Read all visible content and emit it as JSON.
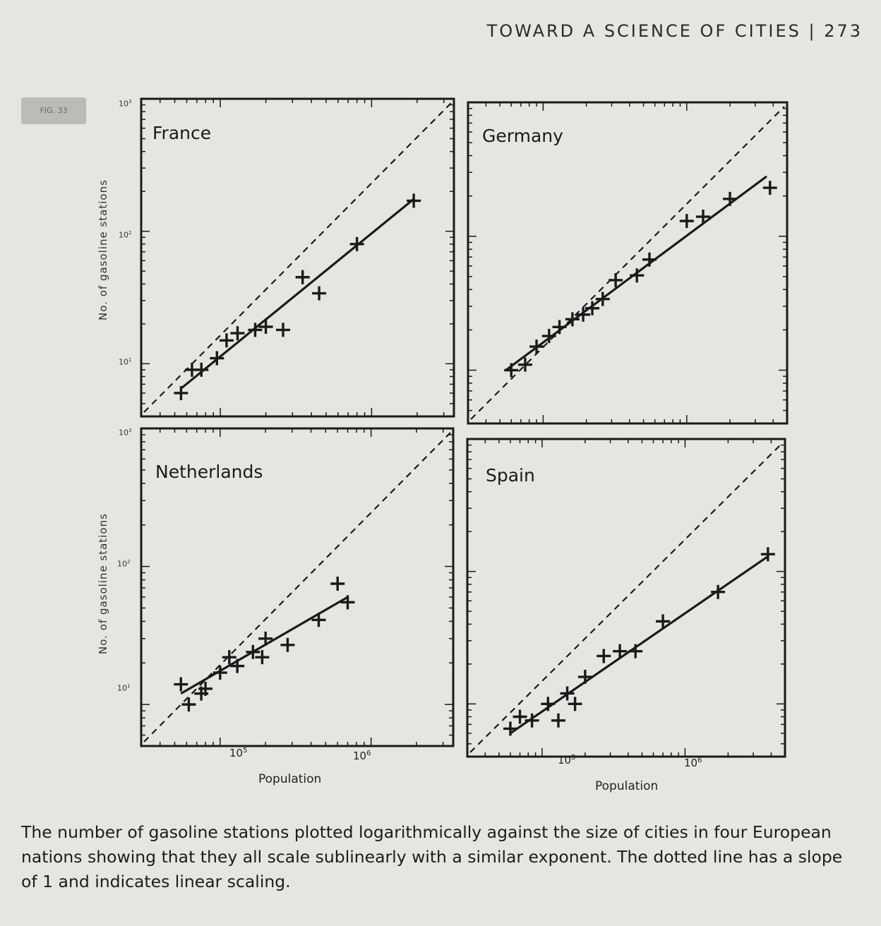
{
  "running_head": "TOWARD A SCIENCE OF CITIES | 273",
  "figure_tag": "FIG. 33",
  "axis_labels": {
    "y": "No. of gasoline stations",
    "x": "Population",
    "x_ticks": [
      "10",
      "10"
    ],
    "x_tick_exponents": [
      "5",
      "6"
    ],
    "y_ticks": [
      "10",
      "10",
      "10"
    ],
    "y_tick_exponents": [
      "3",
      "2",
      "1"
    ]
  },
  "caption": "The number of gasoline stations plotted logarithmically against the size of cities in four European nations showing that they all scale sublinearly with a similar exponent. The dotted line has a slope of 1 and indicates linear scaling.",
  "chart_data": [
    {
      "type": "scatter",
      "title": "France",
      "xlabel": "Population",
      "ylabel": "No. of gasoline stations",
      "log_x": true,
      "log_y": true,
      "xlim": [
        30000,
        3500000
      ],
      "ylim": [
        4,
        1000
      ],
      "points": [
        [
          55000,
          6
        ],
        [
          65000,
          9
        ],
        [
          75000,
          9
        ],
        [
          95000,
          11
        ],
        [
          110000,
          15
        ],
        [
          130000,
          17
        ],
        [
          170000,
          18
        ],
        [
          200000,
          19
        ],
        [
          260000,
          18
        ],
        [
          350000,
          45
        ],
        [
          450000,
          34
        ],
        [
          800000,
          80
        ],
        [
          1900000,
          170
        ]
      ],
      "fit_line": [
        [
          55000,
          6.5
        ],
        [
          1900000,
          175
        ]
      ],
      "reference_line": "slope 1 (dashed)"
    },
    {
      "type": "scatter",
      "title": "Germany",
      "xlabel": "Population",
      "ylabel": "No. of gasoline stations",
      "log_x": true,
      "log_y": true,
      "xlim": [
        30000,
        5000000
      ],
      "ylim": [
        4,
        1000
      ],
      "points": [
        [
          60000,
          10
        ],
        [
          75000,
          11
        ],
        [
          90000,
          15
        ],
        [
          110000,
          18
        ],
        [
          130000,
          21
        ],
        [
          160000,
          24
        ],
        [
          190000,
          26
        ],
        [
          220000,
          29
        ],
        [
          260000,
          34
        ],
        [
          320000,
          47
        ],
        [
          450000,
          51
        ],
        [
          550000,
          67
        ],
        [
          1000000,
          130
        ],
        [
          1300000,
          140
        ],
        [
          2000000,
          190
        ],
        [
          3800000,
          230
        ]
      ],
      "fit_line": [
        [
          55000,
          10
        ],
        [
          3600000,
          280
        ]
      ],
      "reference_line": "slope 1 (dashed)"
    },
    {
      "type": "scatter",
      "title": "Netherlands",
      "xlabel": "Population",
      "ylabel": "No. of gasoline stations",
      "log_x": true,
      "log_y": true,
      "xlim": [
        30000,
        3500000
      ],
      "ylim": [
        5,
        1000
      ],
      "points": [
        [
          55000,
          14
        ],
        [
          62000,
          10
        ],
        [
          75000,
          12
        ],
        [
          80000,
          13
        ],
        [
          100000,
          17
        ],
        [
          115000,
          22
        ],
        [
          130000,
          19
        ],
        [
          165000,
          24
        ],
        [
          190000,
          22
        ],
        [
          200000,
          30
        ],
        [
          280000,
          27
        ],
        [
          450000,
          41
        ],
        [
          600000,
          75
        ],
        [
          700000,
          55
        ]
      ],
      "fit_line": [
        [
          55000,
          12
        ],
        [
          700000,
          60
        ]
      ],
      "reference_line": "slope 1 (dashed)"
    },
    {
      "type": "scatter",
      "title": "Spain",
      "xlabel": "Population",
      "ylabel": "No. of gasoline stations",
      "log_x": true,
      "log_y": true,
      "xlim": [
        30000,
        5000000
      ],
      "ylim": [
        4,
        1000
      ],
      "points": [
        [
          60000,
          6.5
        ],
        [
          70000,
          8
        ],
        [
          85000,
          7.5
        ],
        [
          110000,
          10
        ],
        [
          130000,
          7.5
        ],
        [
          150000,
          12
        ],
        [
          170000,
          10
        ],
        [
          200000,
          16
        ],
        [
          270000,
          23
        ],
        [
          350000,
          25
        ],
        [
          450000,
          25
        ],
        [
          700000,
          42
        ],
        [
          1700000,
          70
        ],
        [
          3800000,
          135
        ]
      ],
      "fit_line": [
        [
          60000,
          6
        ],
        [
          3800000,
          130
        ]
      ],
      "reference_line": "slope 1 (dashed)"
    }
  ]
}
